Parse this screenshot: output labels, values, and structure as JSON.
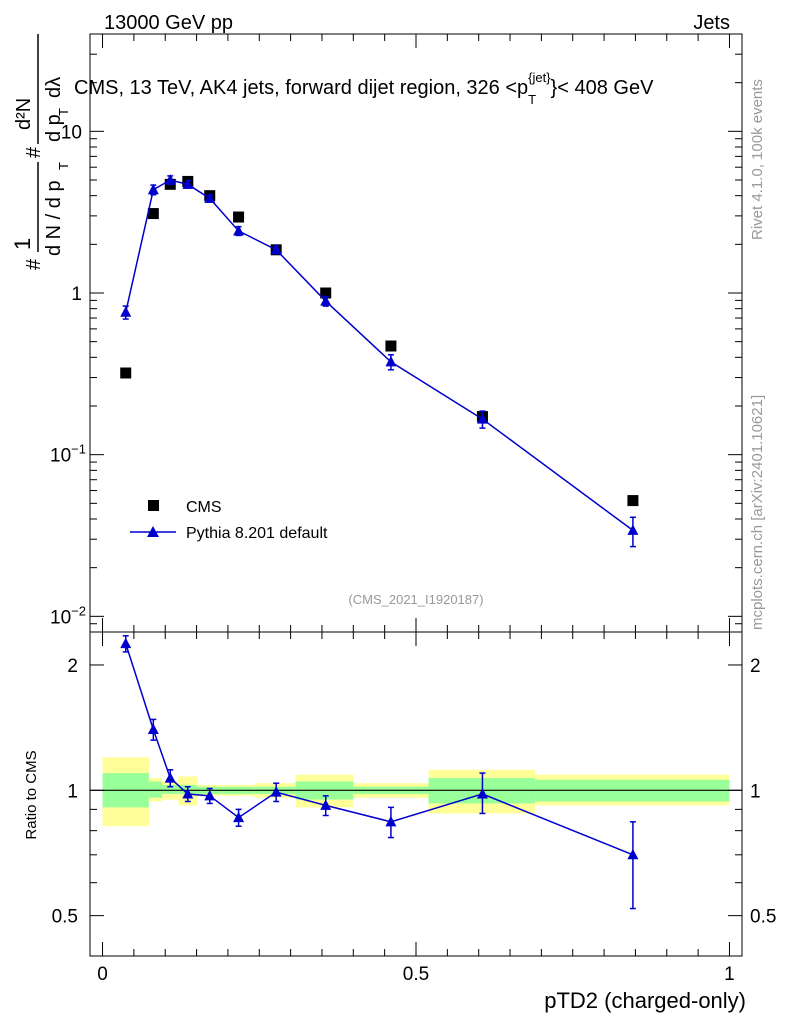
{
  "header": {
    "left": "13000 GeV pp",
    "right": "Jets"
  },
  "side_labels": {
    "rivet": "Rivet 4.1.0,  100k events",
    "mcplots": "mcplots.cern.ch [arXiv:2401.10621]"
  },
  "colors": {
    "cms": "#000000",
    "pythia": "#0000cc",
    "band_inner": "#99ff99",
    "band_outer": "#ffff99",
    "ref_line": "#000000"
  },
  "chart_data": [
    {
      "type": "scatter",
      "title": "CMS, 13 TeV, AK4 jets, forward dijet region, 326 <p",
      "title_sup": "{jet}",
      "title_sub": "T",
      "title_tail": "}< 408 GeV",
      "ylabel": "1 / dN/dp_T  d²N / dp_T dλ",
      "ylabel_parts": {
        "hash": "#",
        "one": "1",
        "dn": "d N / d p",
        "t": "T",
        "d2n": "d²N",
        "dpt": "d p",
        "dl": "dλ"
      },
      "yscale": "log",
      "ylim": [
        0.008,
        40
      ],
      "yticks": [
        0.01,
        0.1,
        1,
        10
      ],
      "ytick_labels": [
        {
          "base": "10",
          "exp": "−2"
        },
        {
          "base": "10",
          "exp": "−1"
        },
        {
          "base": "1",
          "exp": ""
        },
        {
          "base": "10",
          "exp": ""
        }
      ],
      "xlim": [
        -0.02,
        1.02
      ],
      "annotation": "(CMS_2021_I1920187)",
      "legend_position": "lower-left",
      "series": [
        {
          "name": "CMS",
          "marker": "square",
          "x": [
            0.037,
            0.081,
            0.108,
            0.136,
            0.171,
            0.217,
            0.277,
            0.356,
            0.46,
            0.606,
            0.846
          ],
          "y": [
            0.32,
            3.1,
            4.7,
            4.9,
            4.0,
            2.95,
            1.85,
            1.0,
            0.47,
            0.172,
            0.052
          ]
        },
        {
          "name": "Pythia 8.201 default",
          "marker": "triangle",
          "x": [
            0.037,
            0.081,
            0.108,
            0.136,
            0.171,
            0.217,
            0.277,
            0.356,
            0.46,
            0.606,
            0.846
          ],
          "y": [
            0.76,
            4.35,
            5.0,
            4.7,
            3.85,
            2.42,
            1.85,
            0.89,
            0.375,
            0.166,
            0.034
          ],
          "yerr_lo": [
            0.07,
            0.3,
            0.3,
            0.25,
            0.2,
            0.15,
            0.1,
            0.06,
            0.04,
            0.02,
            0.007
          ],
          "yerr_hi": [
            0.07,
            0.3,
            0.3,
            0.25,
            0.2,
            0.15,
            0.1,
            0.06,
            0.04,
            0.02,
            0.007
          ]
        }
      ]
    },
    {
      "type": "line",
      "ylabel": "Ratio to CMS",
      "xlabel": "pTD2 (charged-only)",
      "xlim": [
        -0.02,
        1.02
      ],
      "xticks": [
        0,
        0.5,
        1
      ],
      "xtick_labels": [
        "0",
        "0.5",
        "1"
      ],
      "yscale": "log",
      "ylim": [
        0.4,
        2.4
      ],
      "yticks": [
        0.5,
        1,
        2
      ],
      "ytick_labels": [
        "0.5",
        "1",
        "2"
      ],
      "bands": {
        "edges": [
          0,
          0.074,
          0.095,
          0.121,
          0.151,
          0.192,
          0.242,
          0.308,
          0.4,
          0.52,
          0.69,
          1.0
        ],
        "inner_lo": [
          0.91,
          0.96,
          0.98,
          0.98,
          0.98,
          0.98,
          0.98,
          0.95,
          0.98,
          0.93,
          0.94
        ],
        "inner_hi": [
          1.1,
          1.05,
          1.03,
          1.03,
          1.02,
          1.02,
          1.02,
          1.05,
          1.02,
          1.07,
          1.06
        ],
        "outer_lo": [
          0.82,
          0.94,
          0.95,
          0.92,
          0.97,
          0.97,
          0.96,
          0.91,
          0.96,
          0.88,
          0.92
        ],
        "outer_hi": [
          1.2,
          1.07,
          1.05,
          1.08,
          1.03,
          1.03,
          1.04,
          1.09,
          1.04,
          1.12,
          1.09
        ]
      },
      "series": [
        {
          "name": "Pythia 8.201 default",
          "x": [
            0.037,
            0.081,
            0.108,
            0.136,
            0.171,
            0.217,
            0.277,
            0.356,
            0.46,
            0.606,
            0.846
          ],
          "y": [
            2.25,
            1.4,
            1.07,
            0.98,
            0.97,
            0.86,
            0.99,
            0.92,
            0.84,
            0.98,
            0.7
          ],
          "yerr_lo": [
            0.1,
            0.08,
            0.05,
            0.04,
            0.04,
            0.04,
            0.05,
            0.05,
            0.07,
            0.1,
            0.18
          ],
          "yerr_hi": [
            0.1,
            0.08,
            0.05,
            0.04,
            0.04,
            0.04,
            0.05,
            0.05,
            0.07,
            0.12,
            0.14
          ]
        }
      ]
    }
  ]
}
